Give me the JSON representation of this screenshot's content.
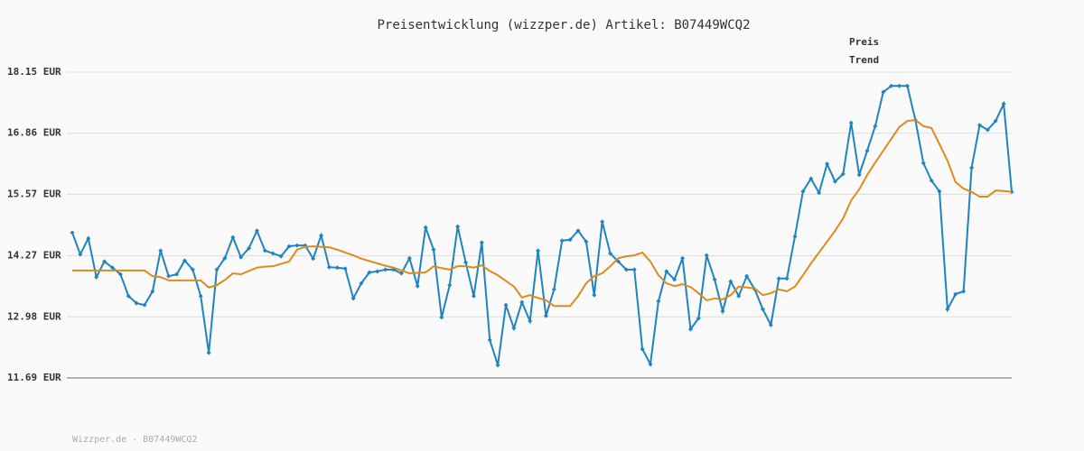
{
  "chart_data": {
    "type": "line",
    "title": "Preisentwicklung (wizzper.de) Artikel: B07449WCQ2",
    "footer": "Wizzper.de - B07449WCQ2",
    "ylim": [
      11.69,
      18.15
    ],
    "yticks": [
      {
        "value": 11.69,
        "label": "11.69 EUR"
      },
      {
        "value": 12.98,
        "label": "12.98 EUR"
      },
      {
        "value": 14.27,
        "label": "14.27 EUR"
      },
      {
        "value": 15.57,
        "label": "15.57 EUR"
      },
      {
        "value": 16.86,
        "label": "16.86 EUR"
      },
      {
        "value": 18.15,
        "label": "18.15 EUR"
      }
    ],
    "grid": true,
    "legend": "top-right",
    "series": [
      {
        "name": "Preis",
        "color": "#1f83c0",
        "markers": true,
        "values": [
          14.76,
          14.3,
          14.64,
          13.82,
          14.15,
          14.02,
          13.88,
          13.42,
          13.27,
          13.23,
          13.52,
          14.38,
          13.84,
          13.88,
          14.17,
          13.98,
          13.42,
          12.22,
          13.98,
          14.22,
          14.66,
          14.24,
          14.43,
          14.8,
          14.38,
          14.32,
          14.26,
          14.47,
          14.49,
          14.49,
          14.21,
          14.7,
          14.03,
          14.02,
          14.0,
          13.37,
          13.69,
          13.92,
          13.94,
          13.98,
          13.98,
          13.9,
          14.22,
          13.63,
          14.87,
          14.4,
          12.97,
          13.65,
          14.89,
          14.13,
          13.42,
          14.55,
          12.49,
          11.96,
          13.23,
          12.74,
          13.29,
          12.89,
          14.38,
          13.0,
          13.56,
          14.59,
          14.61,
          14.8,
          14.57,
          13.44,
          14.99,
          14.32,
          14.15,
          13.98,
          13.98,
          12.3,
          11.98,
          13.31,
          13.94,
          13.77,
          14.22,
          12.72,
          12.95,
          14.28,
          13.77,
          13.1,
          13.73,
          13.42,
          13.84,
          13.56,
          13.14,
          12.81,
          13.79,
          13.79,
          14.68,
          15.63,
          15.9,
          15.6,
          16.21,
          15.84,
          16.0,
          17.08,
          15.98,
          16.49,
          17.01,
          17.73,
          17.86,
          17.86,
          17.86,
          17.14,
          16.23,
          15.86,
          15.63,
          13.14,
          13.46,
          13.52,
          16.13,
          17.03,
          16.93,
          17.12,
          17.48,
          15.62
        ]
      },
      {
        "name": "Trend",
        "color": "#e08a1e",
        "markers": false,
        "values": [
          13.96,
          13.96,
          13.96,
          13.96,
          13.96,
          13.96,
          13.96,
          13.96,
          13.96,
          13.96,
          13.84,
          13.82,
          13.75,
          13.75,
          13.75,
          13.75,
          13.75,
          13.6,
          13.65,
          13.76,
          13.9,
          13.88,
          13.95,
          14.02,
          14.04,
          14.05,
          14.1,
          14.15,
          14.4,
          14.46,
          14.47,
          14.46,
          14.45,
          14.4,
          14.34,
          14.28,
          14.21,
          14.16,
          14.11,
          14.06,
          14.02,
          13.96,
          13.9,
          13.91,
          13.92,
          14.05,
          14.01,
          13.98,
          14.05,
          14.05,
          14.02,
          14.07,
          13.95,
          13.86,
          13.74,
          13.62,
          13.39,
          13.44,
          13.38,
          13.33,
          13.21,
          13.21,
          13.21,
          13.42,
          13.69,
          13.84,
          13.9,
          14.05,
          14.22,
          14.26,
          14.28,
          14.34,
          14.15,
          13.86,
          13.69,
          13.63,
          13.67,
          13.61,
          13.48,
          13.33,
          13.37,
          13.35,
          13.44,
          13.62,
          13.6,
          13.58,
          13.44,
          13.48,
          13.56,
          13.52,
          13.62,
          13.86,
          14.11,
          14.34,
          14.57,
          14.8,
          15.06,
          15.44,
          15.67,
          15.98,
          16.24,
          16.49,
          16.74,
          16.99,
          17.12,
          17.14,
          17.01,
          16.97,
          16.63,
          16.28,
          15.83,
          15.69,
          15.62,
          15.52,
          15.52,
          15.65,
          15.64,
          15.62
        ]
      }
    ]
  }
}
